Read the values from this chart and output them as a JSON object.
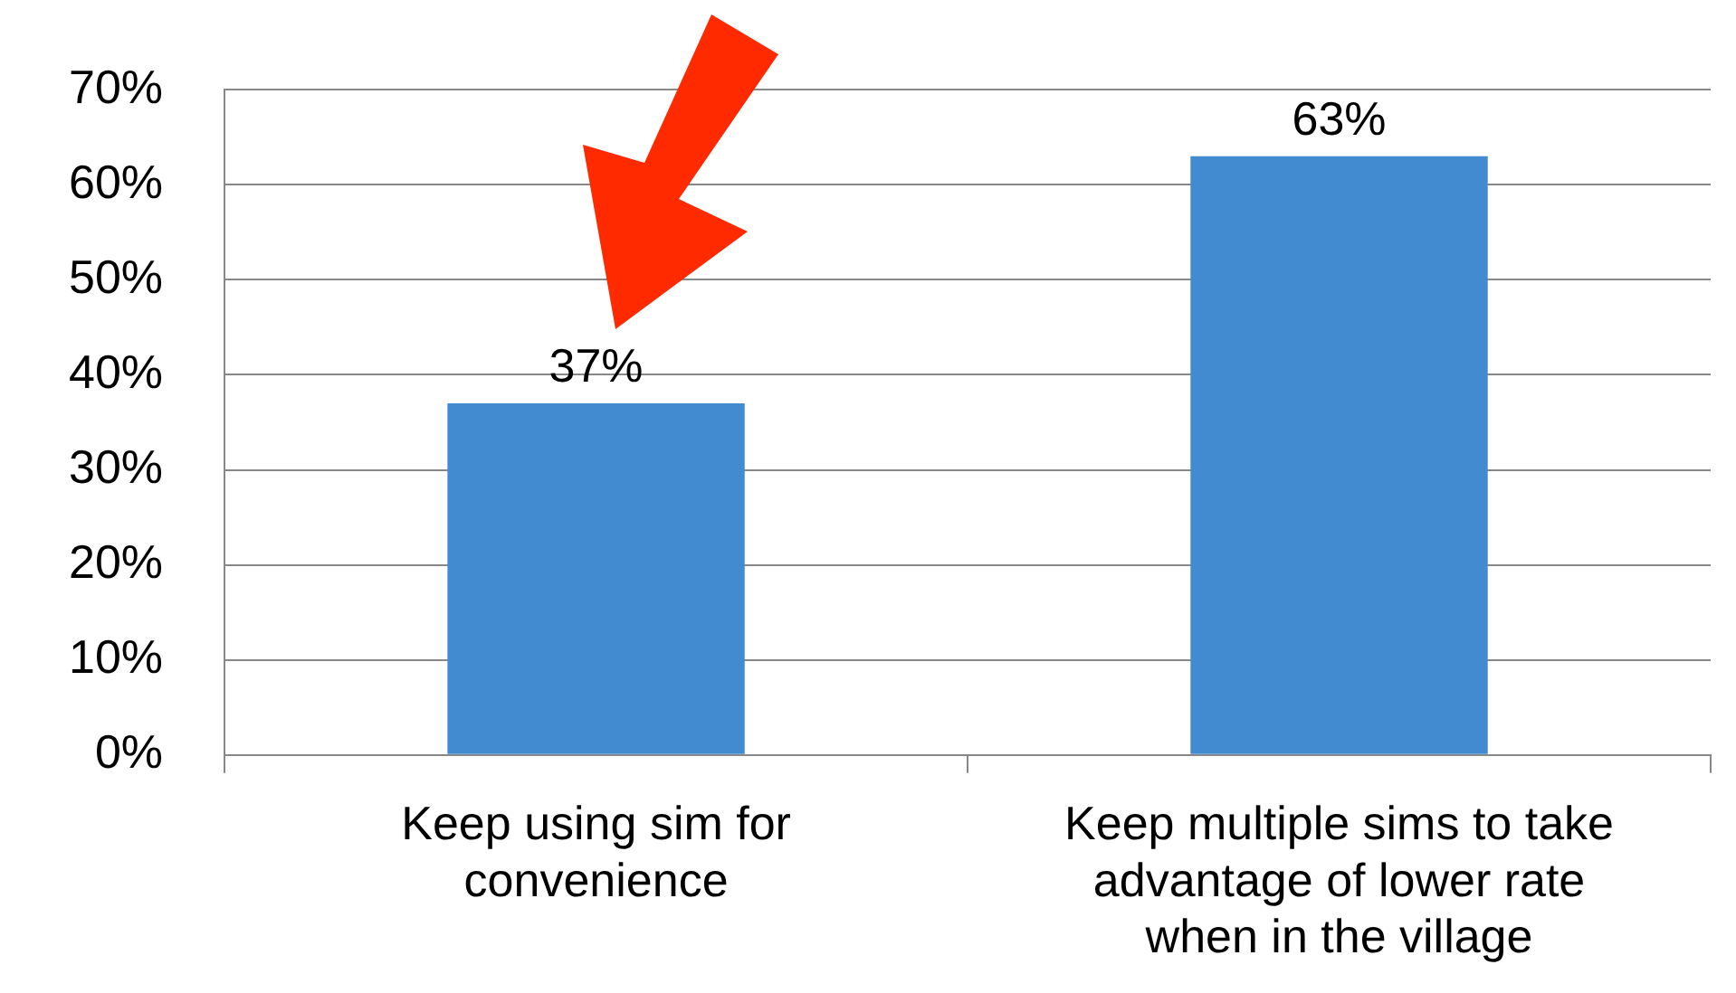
{
  "chart_data": {
    "type": "bar",
    "categories": [
      "Keep using sim for convenience",
      "Keep multiple sims to take advantage of lower rate when in the village"
    ],
    "values": [
      37,
      63
    ],
    "value_labels": [
      "37%",
      "63%"
    ],
    "color": "#428bd0",
    "ylim": [
      0,
      70
    ],
    "yticks": [
      {
        "value": 0,
        "label": "0%"
      },
      {
        "value": 10,
        "label": "10%"
      },
      {
        "value": 20,
        "label": "20%"
      },
      {
        "value": 30,
        "label": "30%"
      },
      {
        "value": 40,
        "label": "40%"
      },
      {
        "value": 50,
        "label": "50%"
      },
      {
        "value": 60,
        "label": "60%"
      },
      {
        "value": 70,
        "label": "70%"
      }
    ],
    "grid": "y",
    "legend": false
  }
}
